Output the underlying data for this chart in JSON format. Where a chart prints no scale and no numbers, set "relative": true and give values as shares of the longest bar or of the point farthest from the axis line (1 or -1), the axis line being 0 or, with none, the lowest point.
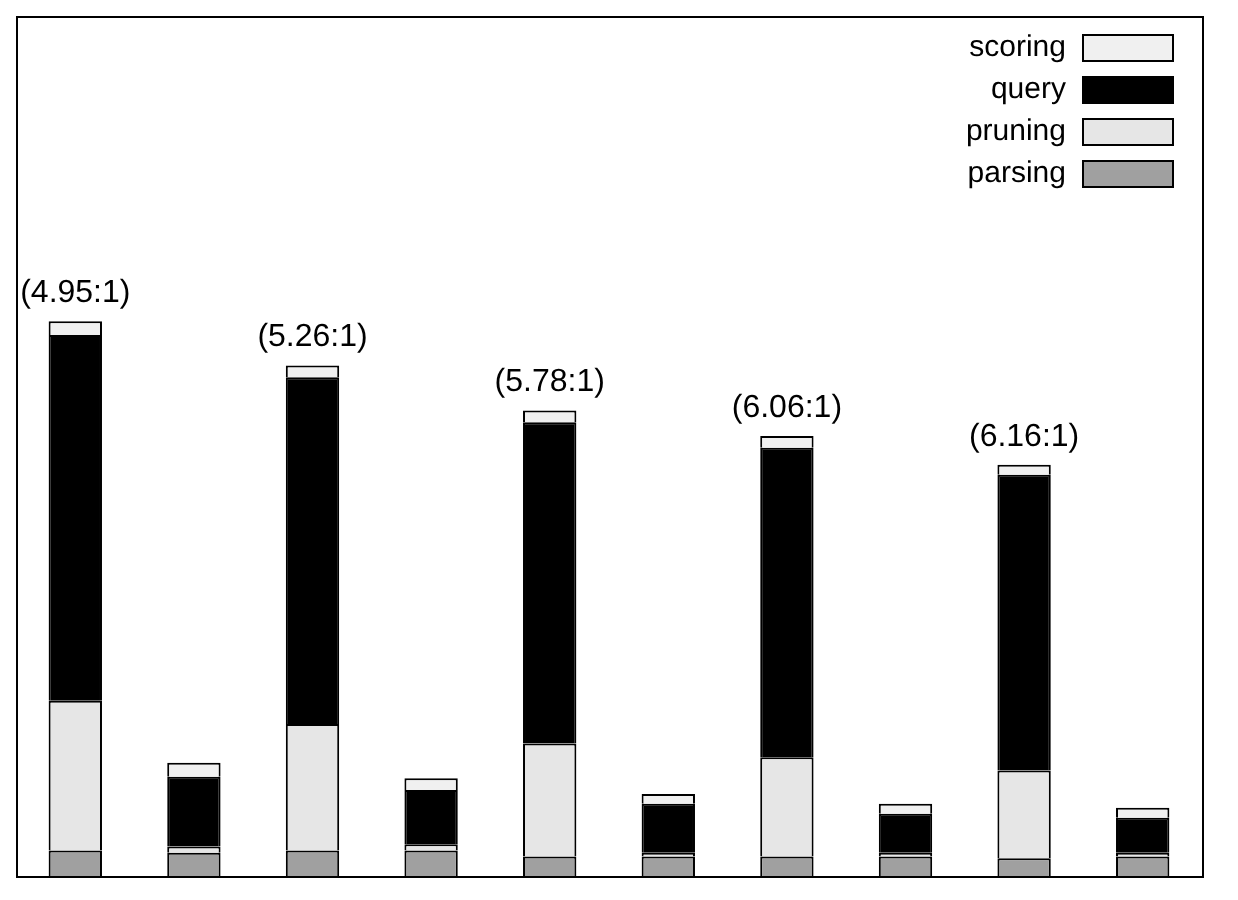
{
  "chart_data": {
    "type": "bar",
    "stacked": true,
    "relative": true,
    "legend": "top right",
    "categories": [
      null,
      null,
      null,
      null,
      null,
      null,
      null,
      null,
      null,
      null
    ],
    "series": [
      {
        "name": "parsing",
        "color": "#a0a0a0",
        "values": [
          0.046,
          0.042,
          0.046,
          0.046,
          0.035,
          0.035,
          0.035,
          0.035,
          0.032,
          0.035
        ]
      },
      {
        "name": "pruning",
        "color": "#e6e6e6",
        "values": [
          0.27,
          0.011,
          0.228,
          0.011,
          0.204,
          0.007,
          0.179,
          0.007,
          0.158,
          0.007
        ]
      },
      {
        "name": "query",
        "color": "#000000",
        "values": [
          0.659,
          0.126,
          0.625,
          0.098,
          0.579,
          0.088,
          0.558,
          0.07,
          0.533,
          0.063
        ]
      },
      {
        "name": "scoring",
        "color": "#f0f0f0",
        "values": [
          0.025,
          0.025,
          0.021,
          0.021,
          0.021,
          0.018,
          0.021,
          0.018,
          0.018,
          0.018
        ]
      }
    ],
    "annotations": [
      "(4.95:1)",
      "(5.26:1)",
      "(5.78:1)",
      "(6.06:1)",
      "(6.16:1)"
    ]
  }
}
